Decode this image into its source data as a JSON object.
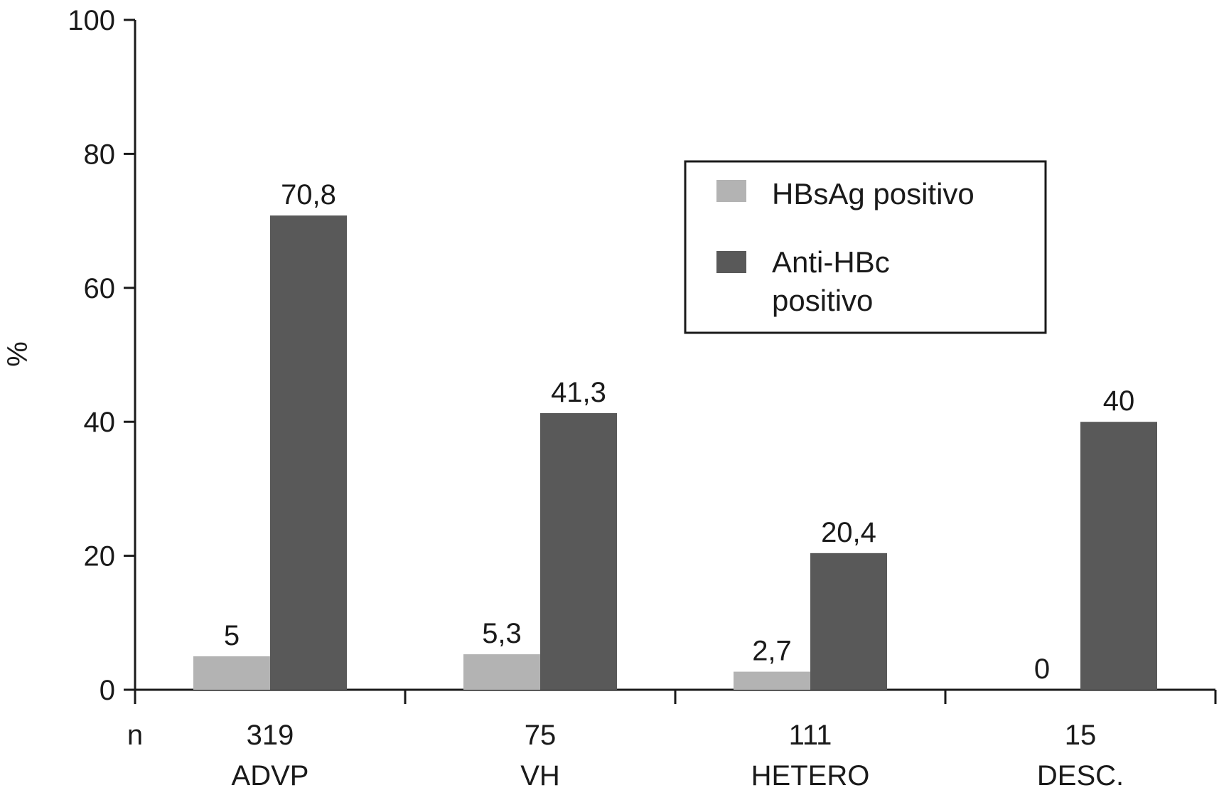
{
  "chart_data": {
    "type": "bar",
    "categories": [
      "ADVP",
      "VH",
      "HETERO",
      "DESC."
    ],
    "n_row_label": "n",
    "n_values": [
      "319",
      "75",
      "111",
      "15"
    ],
    "ylabel": "%",
    "ylim": [
      0,
      100
    ],
    "yticks": [
      "0",
      "20",
      "40",
      "60",
      "80",
      "100"
    ],
    "grid": false,
    "legend_position": "top-right",
    "series": [
      {
        "name": "HBsAg positivo",
        "name_lines": [
          "HBsAg positivo"
        ],
        "color": "#b3b3b3",
        "values": [
          5,
          5.3,
          2.7,
          0
        ],
        "labels": [
          "5",
          "5,3",
          "2,7",
          "0"
        ]
      },
      {
        "name": "Anti-HBc positivo",
        "name_lines": [
          "Anti-HBc",
          "positivo"
        ],
        "color": "#595959",
        "values": [
          70.8,
          41.3,
          20.4,
          40
        ],
        "labels": [
          "70,8",
          "41,3",
          "20,4",
          "40"
        ]
      }
    ]
  }
}
